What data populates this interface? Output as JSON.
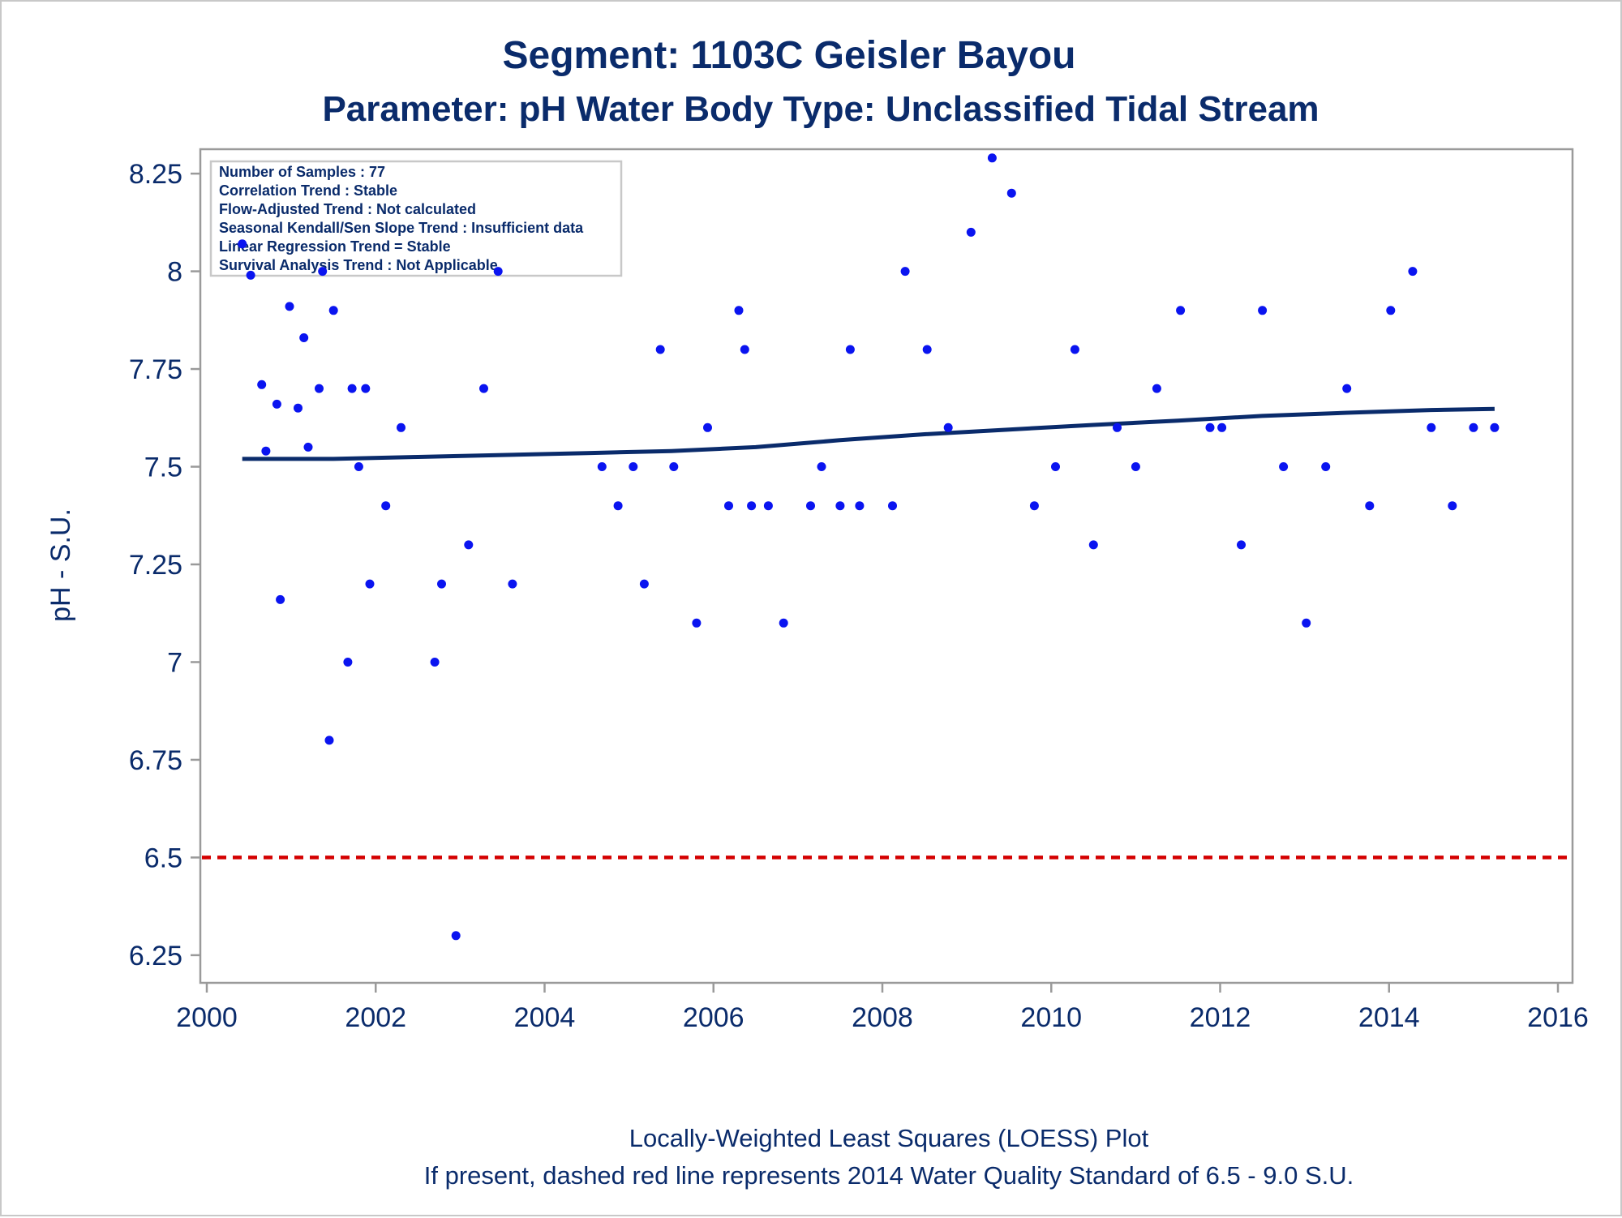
{
  "chart_data": {
    "type": "scatter",
    "title": "Segment: 1103C  Geisler Bayou",
    "subtitle": "Parameter: pH   Water Body Type: Unclassified Tidal Stream",
    "xlabel": "",
    "ylabel": "pH - S.U.",
    "xlim": [
      2000,
      2016
    ],
    "ylim": [
      6.2,
      8.3
    ],
    "x_ticks": [
      "2000",
      "2002",
      "2004",
      "2006",
      "2008",
      "2010",
      "2012",
      "2014",
      "2016"
    ],
    "x_tick_values": [
      2000,
      2002,
      2004,
      2006,
      2008,
      2010,
      2012,
      2014,
      2016
    ],
    "y_ticks": [
      "6.25",
      "6.5",
      "6.75",
      "7",
      "7.25",
      "7.5",
      "7.75",
      "8",
      "8.25"
    ],
    "y_tick_values": [
      6.25,
      6.5,
      6.75,
      7,
      7.25,
      7.5,
      7.75,
      8,
      8.25
    ],
    "grid": false,
    "stats_box": [
      "Number of Samples : 77",
      "Correlation Trend : Stable",
      "Flow-Adjusted Trend : Not calculated",
      "Seasonal Kendall/Sen Slope Trend : Insufficient data",
      "Linear Regression Trend = Stable",
      "Survival Analysis Trend : Not Applicable"
    ],
    "series": [
      {
        "name": "pH samples",
        "kind": "scatter",
        "color": "#0a14f0",
        "points": [
          [
            2000.42,
            8.07
          ],
          [
            2000.52,
            7.99
          ],
          [
            2000.65,
            7.71
          ],
          [
            2000.7,
            7.54
          ],
          [
            2000.83,
            7.66
          ],
          [
            2000.87,
            7.16
          ],
          [
            2000.98,
            7.91
          ],
          [
            2001.08,
            7.65
          ],
          [
            2001.15,
            7.83
          ],
          [
            2001.2,
            7.55
          ],
          [
            2001.33,
            7.7
          ],
          [
            2001.37,
            8.0
          ],
          [
            2001.45,
            6.8
          ],
          [
            2001.5,
            7.9
          ],
          [
            2001.67,
            7.0
          ],
          [
            2001.72,
            7.7
          ],
          [
            2001.8,
            7.5
          ],
          [
            2001.88,
            7.7
          ],
          [
            2001.93,
            7.2
          ],
          [
            2002.12,
            7.4
          ],
          [
            2002.3,
            7.6
          ],
          [
            2002.7,
            7.0
          ],
          [
            2002.78,
            7.2
          ],
          [
            2002.95,
            6.3
          ],
          [
            2003.1,
            7.3
          ],
          [
            2003.28,
            7.7
          ],
          [
            2003.45,
            8.0
          ],
          [
            2003.62,
            7.2
          ],
          [
            2004.68,
            7.5
          ],
          [
            2004.87,
            7.4
          ],
          [
            2005.05,
            7.5
          ],
          [
            2005.18,
            7.2
          ],
          [
            2005.37,
            7.8
          ],
          [
            2005.53,
            7.5
          ],
          [
            2005.8,
            7.1
          ],
          [
            2005.93,
            7.6
          ],
          [
            2006.18,
            7.4
          ],
          [
            2006.3,
            7.9
          ],
          [
            2006.37,
            7.8
          ],
          [
            2006.45,
            7.4
          ],
          [
            2006.65,
            7.4
          ],
          [
            2006.83,
            7.1
          ],
          [
            2007.15,
            7.4
          ],
          [
            2007.28,
            7.5
          ],
          [
            2007.5,
            7.4
          ],
          [
            2007.62,
            7.8
          ],
          [
            2007.73,
            7.4
          ],
          [
            2008.12,
            7.4
          ],
          [
            2008.27,
            8.0
          ],
          [
            2008.53,
            7.8
          ],
          [
            2008.78,
            7.6
          ],
          [
            2009.05,
            8.1
          ],
          [
            2009.3,
            8.29
          ],
          [
            2009.53,
            8.2
          ],
          [
            2009.8,
            7.4
          ],
          [
            2010.05,
            7.5
          ],
          [
            2010.28,
            7.8
          ],
          [
            2010.5,
            7.3
          ],
          [
            2010.78,
            7.6
          ],
          [
            2011.0,
            7.5
          ],
          [
            2011.25,
            7.7
          ],
          [
            2011.53,
            7.9
          ],
          [
            2011.88,
            7.6
          ],
          [
            2012.02,
            7.6
          ],
          [
            2012.25,
            7.3
          ],
          [
            2012.5,
            7.9
          ],
          [
            2012.75,
            7.5
          ],
          [
            2013.02,
            7.1
          ],
          [
            2013.25,
            7.5
          ],
          [
            2013.5,
            7.7
          ],
          [
            2013.77,
            7.4
          ],
          [
            2014.02,
            7.9
          ],
          [
            2014.28,
            8.0
          ],
          [
            2014.5,
            7.6
          ],
          [
            2014.75,
            7.4
          ],
          [
            2015.0,
            7.6
          ],
          [
            2015.25,
            7.6
          ]
        ]
      },
      {
        "name": "LOESS fit",
        "kind": "line",
        "color": "#0a2b6b",
        "points": [
          [
            2000.42,
            7.52
          ],
          [
            2001.5,
            7.52
          ],
          [
            2002.5,
            7.525
          ],
          [
            2003.5,
            7.53
          ],
          [
            2004.5,
            7.535
          ],
          [
            2005.5,
            7.54
          ],
          [
            2006.5,
            7.55
          ],
          [
            2007.5,
            7.568
          ],
          [
            2008.5,
            7.583
          ],
          [
            2009.5,
            7.595
          ],
          [
            2010.5,
            7.607
          ],
          [
            2011.5,
            7.618
          ],
          [
            2012.5,
            7.63
          ],
          [
            2013.5,
            7.638
          ],
          [
            2014.5,
            7.645
          ],
          [
            2015.25,
            7.648
          ]
        ]
      },
      {
        "name": "2014 Water Quality Standard minimum",
        "kind": "hline",
        "value": 6.5,
        "color": "#d40000"
      }
    ],
    "footer_line1": "Locally-Weighted Least Squares (LOESS) Plot",
    "footer_line2": "If present, dashed red line represents 2014 Water Quality Standard of 6.5 - 9.0 S.U."
  }
}
